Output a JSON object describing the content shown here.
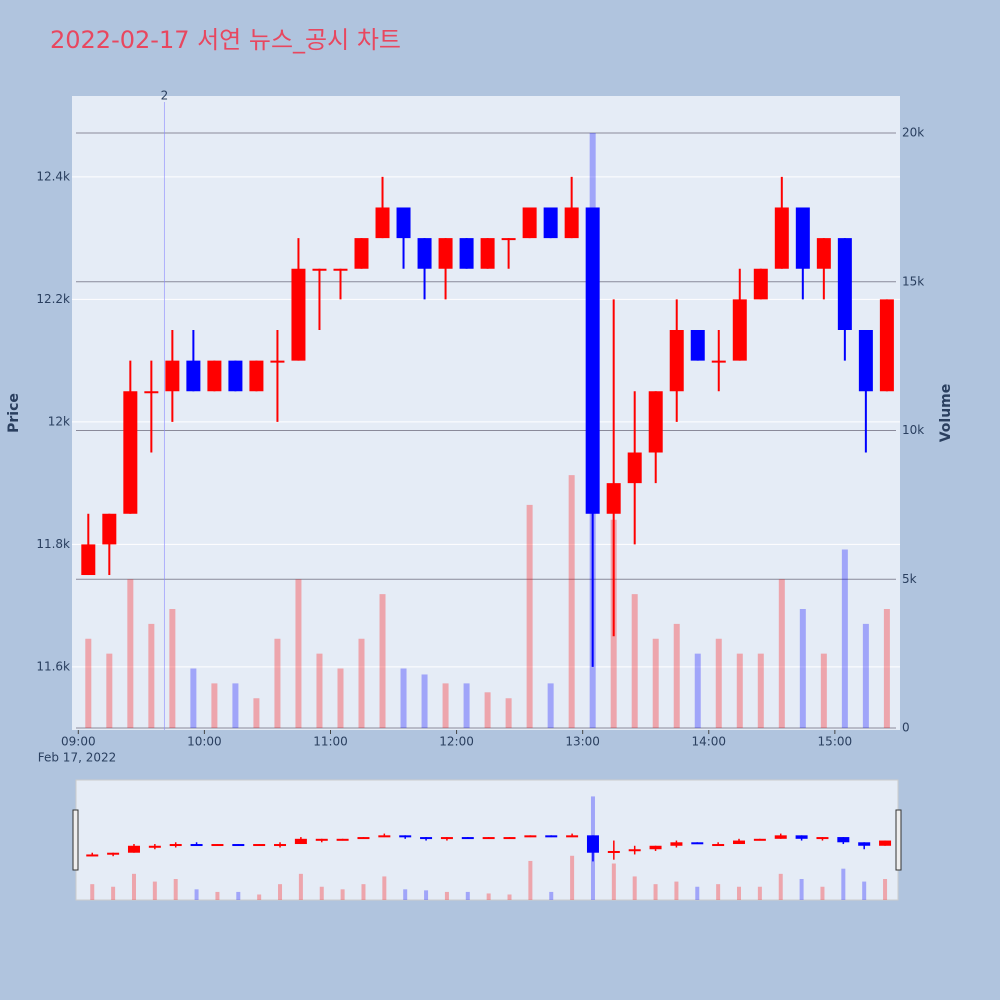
{
  "chart_data": {
    "type": "candlestick",
    "title": "2022-02-17 서연 뉴스_공시 차트",
    "y_label": "Price",
    "y2_label": "Volume",
    "x_date_label": "Feb 17, 2022",
    "annotation": {
      "x": "2022-02-17 09:41",
      "text": "2"
    },
    "up_color": "#ff0000",
    "down_color": "#0000ff",
    "xlim": [
      "2022-02-17 08:57",
      "2022-02-17 15:31"
    ],
    "xticks": [
      {
        "value": "2022-02-17 09:00",
        "label": "09:00"
      },
      {
        "value": "2022-02-17 10:00",
        "label": "10:00"
      },
      {
        "value": "2022-02-17 11:00",
        "label": "11:00"
      },
      {
        "value": "2022-02-17 12:00",
        "label": "12:00"
      },
      {
        "value": "2022-02-17 13:00",
        "label": "13:00"
      },
      {
        "value": "2022-02-17 14:00",
        "label": "14:00"
      },
      {
        "value": "2022-02-17 15:00",
        "label": "15:00"
      }
    ],
    "ylim": [
      11497,
      12532
    ],
    "yticks": [
      {
        "value": 11600,
        "label": "11.6k"
      },
      {
        "value": 11800,
        "label": "11.8k"
      },
      {
        "value": 12000,
        "label": "12k"
      },
      {
        "value": 12200,
        "label": "12.2k"
      },
      {
        "value": 12400,
        "label": "12.4k"
      }
    ],
    "y2lim": [
      -67,
      21244
    ],
    "y2ticks": [
      0,
      {
        "value": 5000,
        "label": "5k"
      },
      {
        "value": 10000,
        "label": "10k"
      },
      {
        "value": 15000,
        "label": "15k"
      },
      {
        "value": 20000,
        "label": "20k"
      }
    ],
    "x": [
      "2022-02-17 09:00",
      "2022-02-17 09:10",
      "2022-02-17 09:20",
      "2022-02-17 09:30",
      "2022-02-17 09:40",
      "2022-02-17 09:50",
      "2022-02-17 10:00",
      "2022-02-17 10:10",
      "2022-02-17 10:20",
      "2022-02-17 10:30",
      "2022-02-17 10:40",
      "2022-02-17 10:50",
      "2022-02-17 11:00",
      "2022-02-17 11:10",
      "2022-02-17 11:20",
      "2022-02-17 11:30",
      "2022-02-17 11:40",
      "2022-02-17 11:50",
      "2022-02-17 12:00",
      "2022-02-17 12:10",
      "2022-02-17 12:20",
      "2022-02-17 12:30",
      "2022-02-17 12:40",
      "2022-02-17 12:50",
      "2022-02-17 13:00",
      "2022-02-17 13:10",
      "2022-02-17 13:20",
      "2022-02-17 13:30",
      "2022-02-17 13:40",
      "2022-02-17 13:50",
      "2022-02-17 14:00",
      "2022-02-17 14:10",
      "2022-02-17 14:20",
      "2022-02-17 14:30",
      "2022-02-17 14:40",
      "2022-02-17 14:50",
      "2022-02-17 15:00",
      "2022-02-17 15:10",
      "2022-02-17 15:20"
    ],
    "open": [
      11750,
      11800,
      11850,
      12050,
      12050,
      12100,
      12050,
      12100,
      12050,
      12100,
      12100,
      12250,
      12250,
      12250,
      12300,
      12350,
      12300,
      12250,
      12300,
      12250,
      12300,
      12300,
      12350,
      12300,
      12350,
      11850,
      11900,
      11950,
      12050,
      12150,
      12100,
      12100,
      12200,
      12250,
      12350,
      12250,
      12300,
      12150,
      12050
    ],
    "high": [
      11850,
      11850,
      12100,
      12100,
      12150,
      12150,
      12100,
      12100,
      12100,
      12150,
      12300,
      12250,
      12250,
      12300,
      12400,
      12350,
      12300,
      12300,
      12300,
      12300,
      12300,
      12350,
      12350,
      12400,
      12350,
      12200,
      12050,
      12050,
      12200,
      12150,
      12150,
      12250,
      12250,
      12400,
      12350,
      12300,
      12300,
      12150,
      12200
    ],
    "low": [
      11750,
      11750,
      11850,
      11950,
      12000,
      12050,
      12050,
      12050,
      12050,
      12000,
      12100,
      12150,
      12200,
      12250,
      12300,
      12250,
      12200,
      12200,
      12250,
      12250,
      12250,
      12300,
      12300,
      12300,
      11600,
      11650,
      11800,
      11900,
      12000,
      12100,
      12050,
      12100,
      12200,
      12250,
      12200,
      12200,
      12100,
      11950,
      12050
    ],
    "close": [
      11800,
      11850,
      12050,
      12050,
      12100,
      12050,
      12100,
      12050,
      12100,
      12100,
      12250,
      12250,
      12250,
      12300,
      12350,
      12300,
      12250,
      12300,
      12250,
      12300,
      12300,
      12350,
      12300,
      12350,
      11850,
      11900,
      11950,
      12050,
      12150,
      12100,
      12100,
      12200,
      12250,
      12350,
      12250,
      12300,
      12150,
      12050,
      12200
    ],
    "volume": [
      3000,
      2500,
      5000,
      3500,
      4000,
      2000,
      1500,
      1500,
      1000,
      3000,
      5000,
      2500,
      2000,
      3000,
      4500,
      2000,
      1800,
      1500,
      1500,
      1200,
      1000,
      7500,
      1500,
      8500,
      20000,
      7000,
      4500,
      3000,
      3500,
      2500,
      3000,
      2500,
      2500,
      5000,
      4000,
      2500,
      6000,
      3500,
      4000
    ]
  }
}
